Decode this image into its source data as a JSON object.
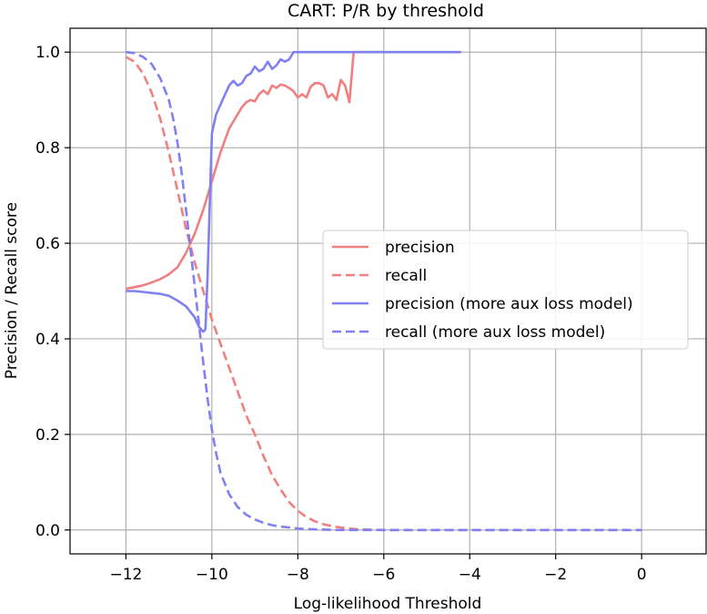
{
  "chart_data": {
    "type": "line",
    "title": "CART: P/R by threshold",
    "xlabel": "Log-likelihood Threshold",
    "ylabel": "Precision / Recall score",
    "xlim": [
      -13.3,
      1.5
    ],
    "ylim": [
      -0.05,
      1.05
    ],
    "grid": true,
    "legend_position": "center-right",
    "xticks": [
      {
        "value": -12,
        "label": "−12"
      },
      {
        "value": -10,
        "label": "−10"
      },
      {
        "value": -8,
        "label": "−8"
      },
      {
        "value": -6,
        "label": "−6"
      },
      {
        "value": -4,
        "label": "−4"
      },
      {
        "value": -2,
        "label": "−2"
      },
      {
        "value": 0,
        "label": "0"
      }
    ],
    "yticks": [
      {
        "value": 0.0,
        "label": "0.0"
      },
      {
        "value": 0.2,
        "label": "0.2"
      },
      {
        "value": 0.4,
        "label": "0.4"
      },
      {
        "value": 0.6,
        "label": "0.6"
      },
      {
        "value": 0.8,
        "label": "0.8"
      },
      {
        "value": 1.0,
        "label": "1.0"
      }
    ],
    "series": [
      {
        "name": "precision",
        "color": "#f08080",
        "dash": "solid",
        "x": [
          -12,
          -11.8,
          -11.6,
          -11.4,
          -11.2,
          -11.0,
          -10.8,
          -10.6,
          -10.4,
          -10.2,
          -10.0,
          -9.8,
          -9.6,
          -9.4,
          -9.3,
          -9.2,
          -9.1,
          -9.0,
          -8.9,
          -8.8,
          -8.7,
          -8.6,
          -8.5,
          -8.4,
          -8.3,
          -8.2,
          -8.1,
          -8.0,
          -7.9,
          -7.8,
          -7.7,
          -7.6,
          -7.5,
          -7.4,
          -7.3,
          -7.2,
          -7.1,
          -7.0,
          -6.9,
          -6.8,
          -6.7,
          -6.4,
          -6.0
        ],
        "values": [
          0.505,
          0.508,
          0.512,
          0.518,
          0.525,
          0.535,
          0.55,
          0.58,
          0.62,
          0.67,
          0.73,
          0.79,
          0.84,
          0.87,
          0.885,
          0.895,
          0.9,
          0.897,
          0.912,
          0.92,
          0.912,
          0.93,
          0.925,
          0.932,
          0.93,
          0.925,
          0.918,
          0.905,
          0.912,
          0.905,
          0.928,
          0.935,
          0.935,
          0.93,
          0.905,
          0.912,
          0.9,
          0.942,
          0.93,
          0.895,
          1.0,
          1.0,
          1.0
        ]
      },
      {
        "name": "recall",
        "color": "#f08080",
        "dash": "dashed",
        "x": [
          -12,
          -11.8,
          -11.6,
          -11.4,
          -11.2,
          -11.0,
          -10.8,
          -10.6,
          -10.4,
          -10.2,
          -10.0,
          -9.8,
          -9.6,
          -9.4,
          -9.2,
          -9.0,
          -8.8,
          -8.6,
          -8.4,
          -8.2,
          -8.0,
          -7.8,
          -7.6,
          -7.4,
          -7.2,
          -7.0,
          -6.8,
          -6.5,
          -6.0,
          -5.0,
          -4.0,
          -3.0,
          -2.0,
          -1.0,
          0
        ],
        "values": [
          0.99,
          0.98,
          0.955,
          0.915,
          0.86,
          0.79,
          0.71,
          0.63,
          0.56,
          0.5,
          0.44,
          0.39,
          0.34,
          0.29,
          0.24,
          0.2,
          0.155,
          0.115,
          0.085,
          0.058,
          0.04,
          0.027,
          0.018,
          0.012,
          0.008,
          0.005,
          0.003,
          0.001,
          0.0,
          0.0,
          0.0,
          0.0,
          0.0,
          0.0,
          0.0
        ]
      },
      {
        "name": "precision (more aux loss model)",
        "color": "#8080f0",
        "dash": "solid",
        "x": [
          -12,
          -11.8,
          -11.6,
          -11.4,
          -11.2,
          -11.0,
          -10.8,
          -10.6,
          -10.4,
          -10.3,
          -10.2,
          -10.15,
          -10.1,
          -10.05,
          -10.0,
          -9.95,
          -9.9,
          -9.8,
          -9.7,
          -9.6,
          -9.5,
          -9.4,
          -9.3,
          -9.2,
          -9.1,
          -9.0,
          -8.9,
          -8.8,
          -8.7,
          -8.6,
          -8.5,
          -8.4,
          -8.3,
          -8.2,
          -8.1,
          -8.0,
          -7.0,
          -6.0,
          -5.0,
          -4.2
        ],
        "values": [
          0.5,
          0.5,
          0.498,
          0.496,
          0.494,
          0.49,
          0.48,
          0.468,
          0.445,
          0.425,
          0.415,
          0.42,
          0.53,
          0.68,
          0.83,
          0.85,
          0.87,
          0.89,
          0.91,
          0.93,
          0.94,
          0.93,
          0.935,
          0.95,
          0.955,
          0.97,
          0.96,
          0.965,
          0.98,
          0.965,
          0.972,
          0.985,
          0.98,
          0.985,
          1.0,
          1.0,
          1.0,
          1.0,
          1.0,
          1.0
        ]
      },
      {
        "name": "recall (more aux loss model)",
        "color": "#8080f0",
        "dash": "dashed",
        "x": [
          -12,
          -11.8,
          -11.6,
          -11.4,
          -11.2,
          -11.0,
          -10.9,
          -10.8,
          -10.7,
          -10.6,
          -10.5,
          -10.4,
          -10.3,
          -10.2,
          -10.1,
          -10.0,
          -9.9,
          -9.8,
          -9.6,
          -9.4,
          -9.2,
          -9.0,
          -8.8,
          -8.6,
          -8.4,
          -8.2,
          -8.0,
          -7.8,
          -7.5,
          -7.0,
          -6.0,
          -4.0,
          -2.0,
          0
        ],
        "values": [
          1.0,
          0.998,
          0.99,
          0.975,
          0.945,
          0.9,
          0.86,
          0.81,
          0.745,
          0.67,
          0.59,
          0.51,
          0.43,
          0.35,
          0.275,
          0.21,
          0.16,
          0.12,
          0.075,
          0.048,
          0.032,
          0.022,
          0.015,
          0.01,
          0.007,
          0.005,
          0.003,
          0.002,
          0.001,
          0.0,
          0.0,
          0.0,
          0.0,
          0.0
        ]
      }
    ]
  }
}
